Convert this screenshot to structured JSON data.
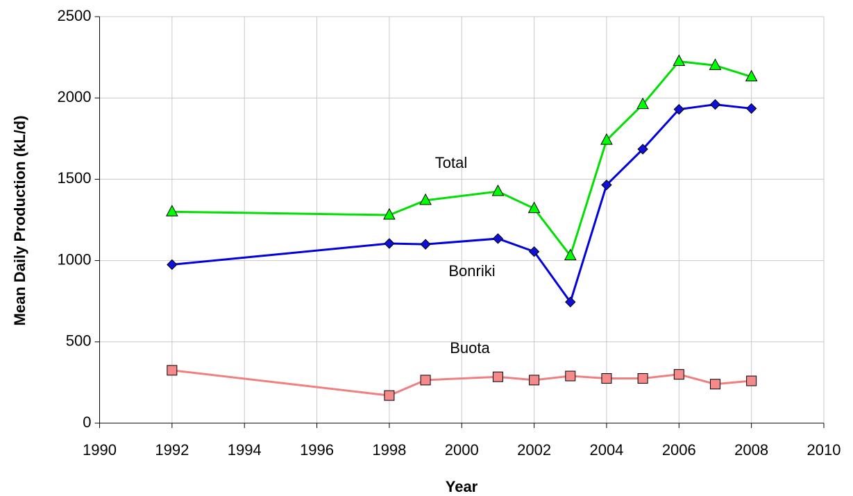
{
  "chart_data": {
    "type": "line",
    "xlabel": "Year",
    "ylabel": "Mean Daily Production (kL/d)",
    "x": [
      1992,
      1998,
      1999,
      2001,
      2002,
      2003,
      2004,
      2005,
      2006,
      2007,
      2008
    ],
    "series": [
      {
        "name": "Total",
        "color": "#00e000",
        "marker": "triangle",
        "marker_color": "#00ff00",
        "values": [
          1300,
          1280,
          1370,
          1425,
          1320,
          1030,
          1740,
          1960,
          2225,
          2200,
          2130
        ]
      },
      {
        "name": "Bonriki",
        "color": "#0000e0",
        "marker": "diamond",
        "marker_color": "#1010d8",
        "values": [
          975,
          1105,
          1100,
          1135,
          1055,
          745,
          1465,
          1685,
          1930,
          1960,
          1935
        ]
      },
      {
        "name": "Buota",
        "color": "#f08080",
        "marker": "square",
        "marker_color": "#f48a8a",
        "values": [
          325,
          170,
          265,
          285,
          265,
          290,
          275,
          275,
          300,
          240,
          260
        ]
      }
    ],
    "xlim": [
      1990,
      2010
    ],
    "xticks": [
      1990,
      1992,
      1994,
      1996,
      1998,
      2000,
      2002,
      2004,
      2006,
      2008,
      2010
    ],
    "ylim": [
      0,
      2500
    ],
    "yticks": [
      0,
      500,
      1000,
      1500,
      2000,
      2500
    ],
    "grid": true
  }
}
